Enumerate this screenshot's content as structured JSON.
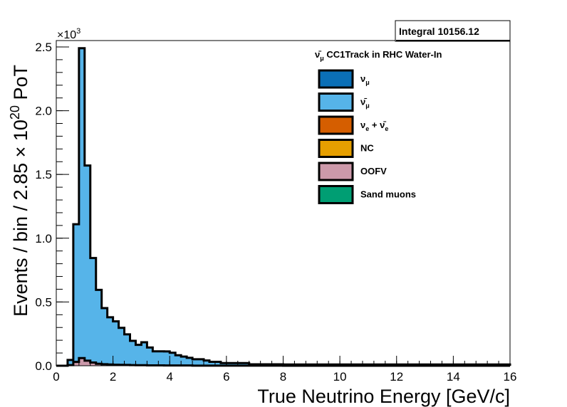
{
  "chart_data": {
    "type": "area",
    "histogram": "stacked",
    "title": "",
    "xlabel": "True Neutrino Energy [GeV/c]",
    "ylabel": "Events / bin / 2.85 × 10²⁰ PoT",
    "ylabel_parts": {
      "prefix": "Events / bin / 2.85 × 10",
      "exponent": "20",
      "suffix": " PoT"
    },
    "xlim": [
      0,
      16
    ],
    "ylim": [
      0,
      2.55
    ],
    "y_multiplier": {
      "base": "×10",
      "exponent": "3"
    },
    "x_ticks": [
      "0",
      "2",
      "4",
      "6",
      "8",
      "10",
      "12",
      "14",
      "16"
    ],
    "y_ticks": [
      "0.0",
      "0.5",
      "1.0",
      "1.5",
      "2.0",
      "2.5"
    ],
    "bin_width": 0.2,
    "bin_edges_start": 0.0,
    "legend_header": {
      "symbol": "ν̄",
      "subscript": "μ",
      "text": " CC1Track in RHC Water-In"
    },
    "legend_placement": "top-right",
    "legend": [
      {
        "key": "numu",
        "symbol": "ν",
        "subscript": "μ",
        "color": "#0b6fb6"
      },
      {
        "key": "numubar",
        "symbol": "ν̄",
        "subscript": "μ",
        "color": "#56b4e9"
      },
      {
        "key": "nue",
        "symbol": "ν",
        "subscript": "e",
        "suffix": " + ",
        "symbol2": "ν̄",
        "subscript2": "e",
        "color": "#d55e00"
      },
      {
        "key": "nc",
        "label": "NC",
        "color": "#e69f00"
      },
      {
        "key": "oofv",
        "label": "OOFV",
        "color": "#cc99aa"
      },
      {
        "key": "sand",
        "label": "Sand muons",
        "color": "#009e73"
      }
    ],
    "stats_box": {
      "label": "Integral",
      "value": "10156.12"
    },
    "series": [
      {
        "name": "ν̄μ",
        "key": "numubar",
        "values": [
          0,
          0,
          0.04,
          1.08,
          2.43,
          1.53,
          0.82,
          0.58,
          0.44,
          0.37,
          0.34,
          0.29,
          0.24,
          0.19,
          0.16,
          0.18,
          0.14,
          0.11,
          0.11,
          0.11,
          0.1,
          0.08,
          0.07,
          0.06,
          0.05,
          0.05,
          0.04,
          0.03,
          0.03,
          0.02,
          0.02,
          0.02,
          0.02,
          0.02,
          0.01,
          0.01,
          0.01,
          0.01,
          0.01,
          0.01,
          0.01,
          0.01,
          0.01,
          0.01,
          0.01,
          0.01,
          0.01,
          0.01,
          0.01,
          0.01,
          0.01,
          0.01,
          0.01,
          0.01,
          0.01,
          0.01,
          0.01,
          0.01,
          0.01,
          0.01,
          0.01,
          0.01,
          0.01,
          0.01,
          0.01,
          0.01,
          0.01,
          0.01,
          0.01,
          0.01,
          0.01,
          0.01,
          0.01,
          0.01,
          0.01,
          0.01,
          0.01,
          0.01,
          0.01,
          0.01
        ]
      },
      {
        "name": "OOFV",
        "key": "oofv",
        "values": [
          0,
          0,
          0.005,
          0.03,
          0.06,
          0.04,
          0.025,
          0.015,
          0.012,
          0.01,
          0.008,
          0.007,
          0.006,
          0.005,
          0.004,
          0.004,
          0.003,
          0.003,
          0.003,
          0.002,
          0.002,
          0.002,
          0.002,
          0.002,
          0.001,
          0.001,
          0.001,
          0.001,
          0.001,
          0.001,
          0.001,
          0.001,
          0.001,
          0.001,
          0.001,
          0.001,
          0.001,
          0.001,
          0.001,
          0.001,
          0,
          0,
          0,
          0,
          0,
          0,
          0,
          0,
          0,
          0,
          0,
          0,
          0,
          0,
          0,
          0,
          0,
          0,
          0,
          0,
          0,
          0,
          0,
          0,
          0,
          0,
          0,
          0,
          0,
          0,
          0,
          0,
          0,
          0,
          0,
          0,
          0,
          0,
          0,
          0
        ]
      }
    ]
  }
}
